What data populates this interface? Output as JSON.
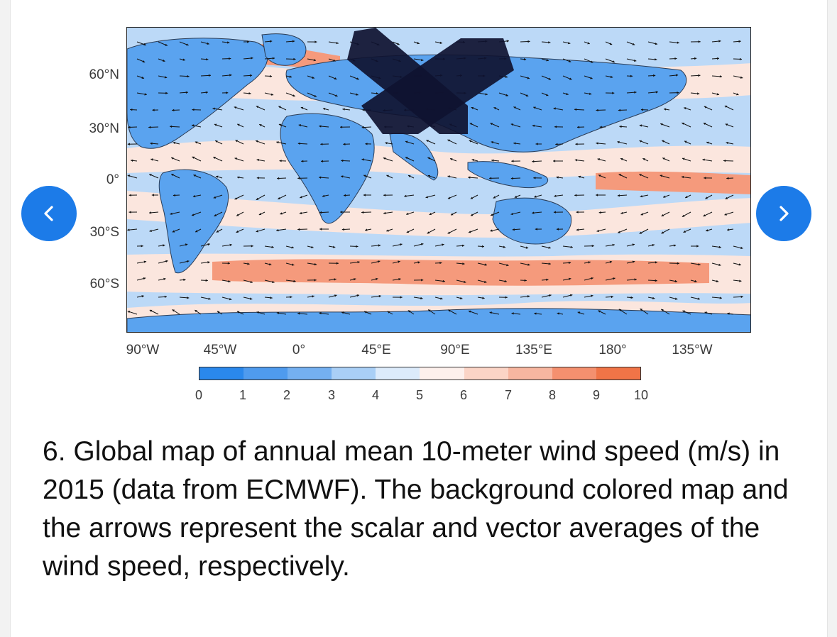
{
  "figure": {
    "lat_labels": [
      "60°N",
      "30°N",
      "0°",
      "30°S",
      "60°S"
    ],
    "lon_labels": [
      "90°W",
      "45°W",
      "0°",
      "45°E",
      "90°E",
      "135°E",
      "180°",
      "135°W"
    ],
    "colorbar": {
      "ticks": [
        "0",
        "1",
        "2",
        "3",
        "4",
        "5",
        "6",
        "7",
        "8",
        "9",
        "10"
      ],
      "colors": [
        "#2a88ec",
        "#4f9bee",
        "#74b0f1",
        "#a9cff6",
        "#dcebfb",
        "#fdf0ec",
        "#fbd4c6",
        "#f7b6a0",
        "#f4906f",
        "#f07447"
      ]
    },
    "map_colors": {
      "land": "#5aa3ef",
      "calm": "#bcd9f7",
      "moderate": "#fbe6de",
      "strong": "#f59a7c",
      "very_strong": "#f07a55",
      "coast": "#2b3c55",
      "arrow": "#111111",
      "redaction": "#0f1230"
    }
  },
  "navigation": {
    "prev_icon": "chevron-left-icon",
    "next_icon": "chevron-right-icon",
    "accent": "#1c7be8"
  },
  "caption": {
    "text": "6. Global map of annual mean 10-meter wind speed (m/s) in 2015 (data from ECMWF). The background colored map and the arrows represent the scalar and vector averages of the wind speed, respectively."
  }
}
